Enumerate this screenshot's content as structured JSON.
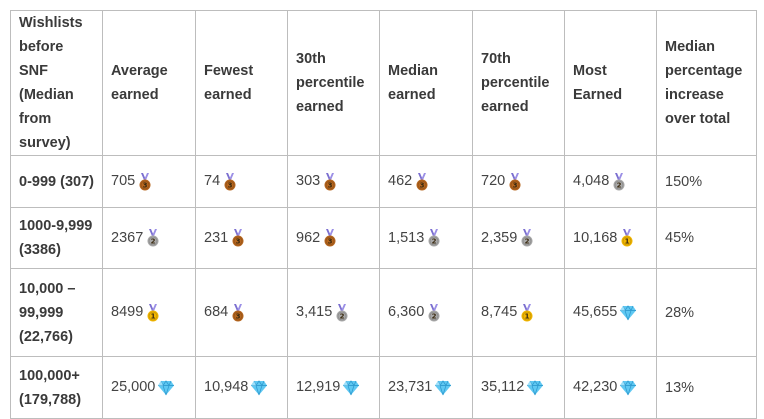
{
  "table": {
    "headers": [
      "Wishlists before SNF (Median from survey)",
      "Average earned",
      "Fewest earned",
      "30th percentile earned",
      "Median earned",
      "70th percentile earned",
      "Most Earned",
      "Median percentage increase over total"
    ],
    "rows": [
      {
        "label": "0-999 (307)",
        "cells": [
          {
            "value": "705",
            "icon": "bronze-medal-icon"
          },
          {
            "value": "74",
            "icon": "bronze-medal-icon"
          },
          {
            "value": "303",
            "icon": "bronze-medal-icon"
          },
          {
            "value": "462",
            "icon": "bronze-medal-icon"
          },
          {
            "value": "720",
            "icon": "bronze-medal-icon"
          },
          {
            "value": "4,048",
            "icon": "silver-medal-icon"
          }
        ],
        "increase": "150%"
      },
      {
        "label": "1000-9,999 (3386)",
        "cells": [
          {
            "value": "2367",
            "icon": "silver-medal-icon"
          },
          {
            "value": "231",
            "icon": "bronze-medal-icon"
          },
          {
            "value": "962",
            "icon": "bronze-medal-icon"
          },
          {
            "value": "1,513",
            "icon": "silver-medal-icon"
          },
          {
            "value": "2,359",
            "icon": "silver-medal-icon"
          },
          {
            "value": "10,168",
            "icon": "gold-medal-icon"
          }
        ],
        "increase": "45%"
      },
      {
        "label": "10,000 – 99,999 (22,766)",
        "cells": [
          {
            "value": "8499",
            "icon": "gold-medal-icon"
          },
          {
            "value": "684",
            "icon": "bronze-medal-icon"
          },
          {
            "value": "3,415",
            "icon": "silver-medal-icon"
          },
          {
            "value": "6,360",
            "icon": "silver-medal-icon"
          },
          {
            "value": "8,745",
            "icon": "gold-medal-icon"
          },
          {
            "value": "45,655",
            "icon": "gem-icon"
          }
        ],
        "increase": "28%"
      },
      {
        "label": "100,000+ (179,788)",
        "cells": [
          {
            "value": "25,000",
            "icon": "gem-icon"
          },
          {
            "value": "10,948",
            "icon": "gem-icon"
          },
          {
            "value": "12,919",
            "icon": "gem-icon"
          },
          {
            "value": "23,731",
            "icon": "gem-icon"
          },
          {
            "value": "35,112",
            "icon": "gem-icon"
          },
          {
            "value": "42,230",
            "icon": "gem-icon"
          }
        ],
        "increase": "13%"
      }
    ],
    "colors": {
      "border": "#bdbdbd",
      "text": "#444444",
      "bronze": "#b5651d",
      "silver": "#a8a8a8",
      "gold": "#f2b600",
      "ribbon": "#7b6fd0",
      "gem": "#5fc8f2"
    }
  }
}
